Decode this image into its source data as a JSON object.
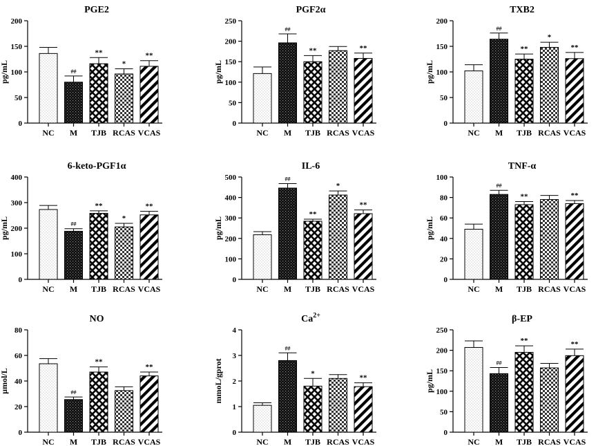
{
  "figure": {
    "title": "Multi-panel bar chart figure"
  },
  "chart_data": [
    {
      "type": "bar",
      "title": "PGE2",
      "title_sup": "",
      "ylabel": "pg/mL",
      "categories": [
        "NC",
        "M",
        "TJB",
        "RCAS",
        "VCAS"
      ],
      "values": [
        136,
        80,
        116,
        96,
        111
      ],
      "errors": [
        12,
        12,
        12,
        10,
        11
      ],
      "annotations": [
        "",
        "##",
        "**",
        "*",
        "**"
      ],
      "ylim": [
        0,
        200
      ],
      "yticks": [
        0,
        50,
        100,
        150,
        200
      ]
    },
    {
      "type": "bar",
      "title": "PGF2α",
      "title_sup": "",
      "ylabel": "pg/mL",
      "categories": [
        "NC",
        "M",
        "TJB",
        "RCAS",
        "VCAS"
      ],
      "values": [
        121,
        196,
        150,
        177,
        158
      ],
      "errors": [
        16,
        22,
        15,
        10,
        13
      ],
      "annotations": [
        "",
        "##",
        "**",
        "",
        "**"
      ],
      "ylim": [
        0,
        250
      ],
      "yticks": [
        0,
        50,
        100,
        150,
        200,
        250
      ]
    },
    {
      "type": "bar",
      "title": "TXB2",
      "title_sup": "",
      "ylabel": "pg/mL",
      "categories": [
        "NC",
        "M",
        "TJB",
        "RCAS",
        "VCAS"
      ],
      "values": [
        102,
        164,
        125,
        148,
        126
      ],
      "errors": [
        12,
        12,
        10,
        10,
        12
      ],
      "annotations": [
        "",
        "##",
        "**",
        "*",
        "**"
      ],
      "ylim": [
        0,
        200
      ],
      "yticks": [
        0,
        50,
        100,
        150,
        200
      ]
    },
    {
      "type": "bar",
      "title": "6-keto-PGF1α",
      "title_sup": "",
      "ylabel": "pg/mL",
      "categories": [
        "NC",
        "M",
        "TJB",
        "RCAS",
        "VCAS"
      ],
      "values": [
        273,
        188,
        258,
        205,
        252
      ],
      "errors": [
        16,
        10,
        10,
        14,
        14
      ],
      "annotations": [
        "",
        "##",
        "**",
        "*",
        "**"
      ],
      "ylim": [
        0,
        400
      ],
      "yticks": [
        0,
        100,
        200,
        300,
        400
      ]
    },
    {
      "type": "bar",
      "title": "IL-6",
      "title_sup": "",
      "ylabel": "pg/mL",
      "categories": [
        "NC",
        "M",
        "TJB",
        "RCAS",
        "VCAS"
      ],
      "values": [
        218,
        446,
        284,
        412,
        321
      ],
      "errors": [
        15,
        22,
        10,
        20,
        18
      ],
      "annotations": [
        "",
        "##",
        "**",
        "*",
        "**"
      ],
      "ylim": [
        0,
        500
      ],
      "yticks": [
        0,
        100,
        200,
        300,
        400,
        500
      ]
    },
    {
      "type": "bar",
      "title": "TNF-α",
      "title_sup": "",
      "ylabel": "pg/mL",
      "categories": [
        "NC",
        "M",
        "TJB",
        "RCAS",
        "VCAS"
      ],
      "values": [
        49,
        83,
        73,
        78,
        74
      ],
      "errors": [
        5,
        4,
        3,
        4,
        3
      ],
      "annotations": [
        "",
        "##",
        "**",
        "",
        "**"
      ],
      "ylim": [
        0,
        100
      ],
      "yticks": [
        0,
        20,
        40,
        60,
        80,
        100
      ]
    },
    {
      "type": "bar",
      "title": "NO",
      "title_sup": "",
      "ylabel": "μmol/L",
      "categories": [
        "NC",
        "M",
        "TJB",
        "RCAS",
        "VCAS"
      ],
      "values": [
        53.5,
        25.5,
        47,
        32.5,
        44
      ],
      "errors": [
        4,
        2,
        4,
        3,
        3
      ],
      "annotations": [
        "",
        "##",
        "**",
        "",
        "**"
      ],
      "ylim": [
        0,
        80
      ],
      "yticks": [
        0,
        20,
        40,
        60,
        80
      ]
    },
    {
      "type": "bar",
      "title": "Ca",
      "title_sup": "2+",
      "ylabel": "mmoL/gprot",
      "categories": [
        "NC",
        "M",
        "TJB",
        "RCAS",
        "VCAS"
      ],
      "values": [
        1.05,
        2.8,
        1.8,
        2.1,
        1.78
      ],
      "errors": [
        0.1,
        0.3,
        0.3,
        0.15,
        0.15
      ],
      "annotations": [
        "",
        "##",
        "*",
        "",
        "**"
      ],
      "ylim": [
        0,
        4
      ],
      "yticks": [
        0,
        1,
        2,
        3,
        4
      ]
    },
    {
      "type": "bar",
      "title": "β-EP",
      "title_sup": "",
      "ylabel": "pg/mL",
      "categories": [
        "NC",
        "M",
        "TJB",
        "RCAS",
        "VCAS"
      ],
      "values": [
        207,
        143,
        195,
        157,
        187
      ],
      "errors": [
        16,
        15,
        16,
        11,
        16
      ],
      "annotations": [
        "",
        "##",
        "**",
        "",
        "**"
      ],
      "ylim": [
        0,
        250
      ],
      "yticks": [
        0,
        50,
        100,
        150,
        200,
        250
      ]
    }
  ]
}
